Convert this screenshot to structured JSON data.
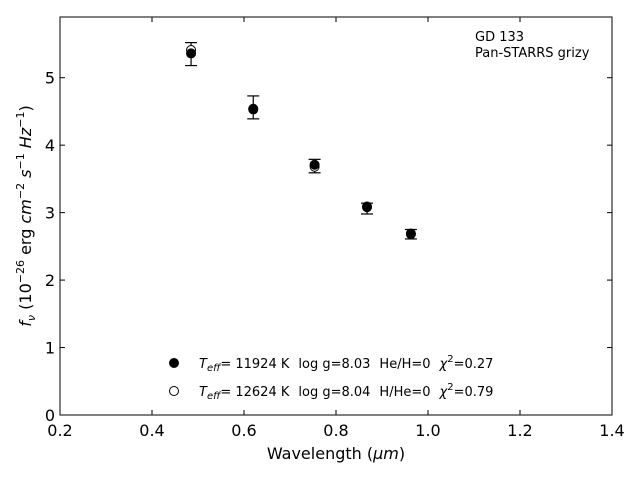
{
  "chart_data": {
    "type": "scatter",
    "title": "",
    "annotations": [
      "GD 133",
      "Pan-STARRS grizy"
    ],
    "xlabel": {
      "prefix": "Wavelength (",
      "unit": "μm",
      "suffix": ")"
    },
    "ylabel": {
      "prefix": "f",
      "prefix_sub": "ν",
      "open": " (10",
      "exp1": "−26",
      "mid": " erg ",
      "u1": "cm",
      "exp2": "−2",
      "u2": " s",
      "exp3": "−1",
      "u3": " Hz",
      "exp4": "−1",
      "close": ")"
    },
    "xlim": [
      0.2,
      1.4
    ],
    "ylim": [
      0,
      5.9
    ],
    "xticks": [
      0.2,
      0.4,
      0.6,
      0.8,
      1.0,
      1.2,
      1.4
    ],
    "xtick_labels": [
      "0.2",
      "0.4",
      "0.6",
      "0.8",
      "1.0",
      "1.2",
      "1.4"
    ],
    "yticks": [
      0,
      1,
      2,
      3,
      4,
      5
    ],
    "ytick_labels": [
      "0",
      "1",
      "2",
      "3",
      "4",
      "5"
    ],
    "grid": false,
    "legend_position": "bottom-center",
    "observed": {
      "x": [
        0.4849,
        0.6201,
        0.7535,
        0.8674,
        0.9628
      ],
      "y": [
        5.35,
        4.56,
        3.69,
        3.06,
        2.68
      ],
      "yerr": [
        0.17,
        0.17,
        0.1,
        0.08,
        0.07
      ]
    },
    "series": [
      {
        "name": "He/H=0",
        "marker": "filled-circle",
        "teff": "11924 K",
        "logg": "log g=8.03",
        "chi2": "0.27",
        "x": [
          0.4849,
          0.6201,
          0.7535,
          0.8674,
          0.9628
        ],
        "y": [
          5.36,
          4.53,
          3.71,
          3.09,
          2.68
        ]
      },
      {
        "name": "H/He=0",
        "marker": "open-circle",
        "teff": "12624 K",
        "logg": "log g=8.04",
        "chi2": "0.79",
        "x": [
          0.4849,
          0.6201,
          0.7535,
          0.8674,
          0.9628
        ],
        "y": [
          5.41,
          4.54,
          3.68,
          3.08,
          2.69
        ]
      }
    ],
    "legend_text": {
      "t": "T",
      "t_sub": "eff",
      "eq": "= ",
      "chi": "χ",
      "chi_sup": "2",
      "chi_eq": "="
    },
    "colors": {
      "marker": "#000000",
      "axis": "#000000",
      "background": "#ffffff"
    }
  }
}
